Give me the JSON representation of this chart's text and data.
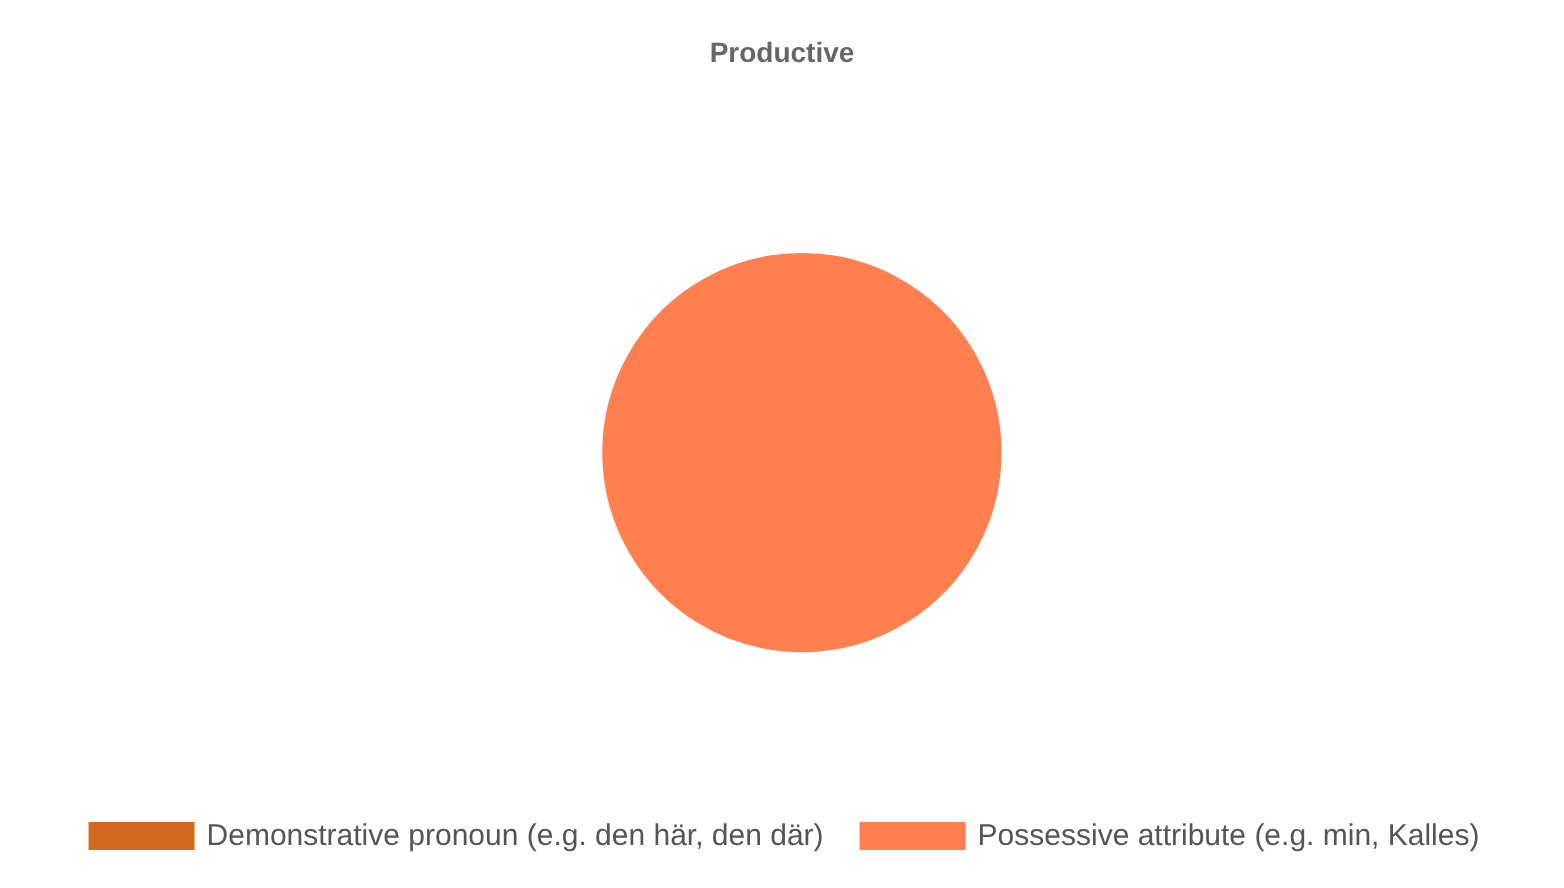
{
  "chart_data": {
    "type": "pie",
    "title": "Productive",
    "categories": [
      "Demonstrative pronoun (e.g. den här, den där)",
      "Possessive attribute (e.g. min, Kalles)"
    ],
    "values": [
      0,
      100
    ],
    "colors": [
      "#d2691e",
      "#ff7f50"
    ],
    "legend": "bottom"
  }
}
